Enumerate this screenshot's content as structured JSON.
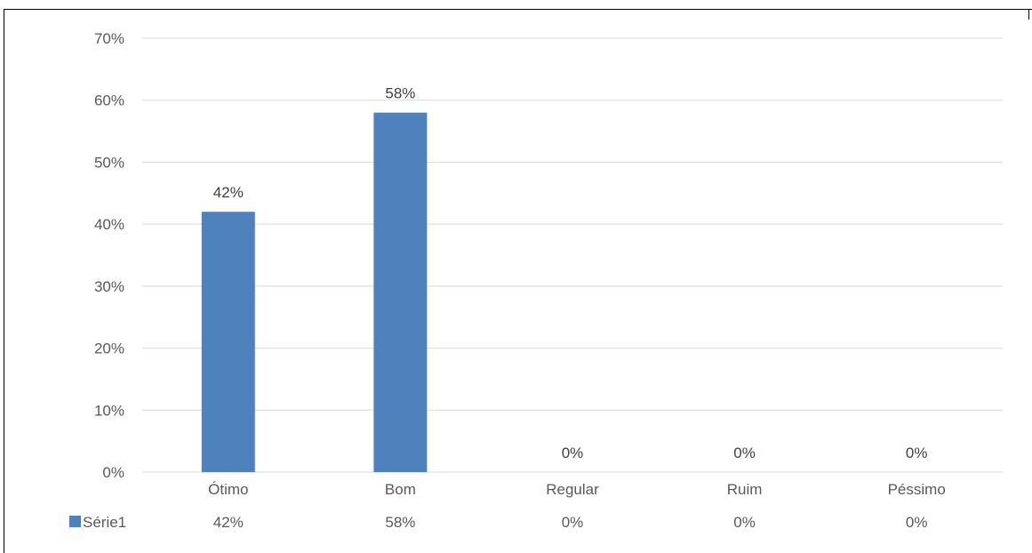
{
  "chart_data": {
    "type": "bar",
    "categories": [
      "Ótimo",
      "Bom",
      "Regular",
      "Ruim",
      "Péssimo"
    ],
    "series": [
      {
        "name": "Série1",
        "values": [
          0.42,
          0.58,
          0,
          0,
          0
        ],
        "display": [
          "42%",
          "58%",
          "0%",
          "0%",
          "0%"
        ],
        "color": "#4f81bd"
      }
    ],
    "y_ticks": [
      "0%",
      "10%",
      "20%",
      "30%",
      "40%",
      "50%",
      "60%",
      "70%"
    ],
    "ylim": [
      0,
      0.7
    ],
    "grid": true,
    "legend": "data-table-left",
    "data_table": true
  }
}
